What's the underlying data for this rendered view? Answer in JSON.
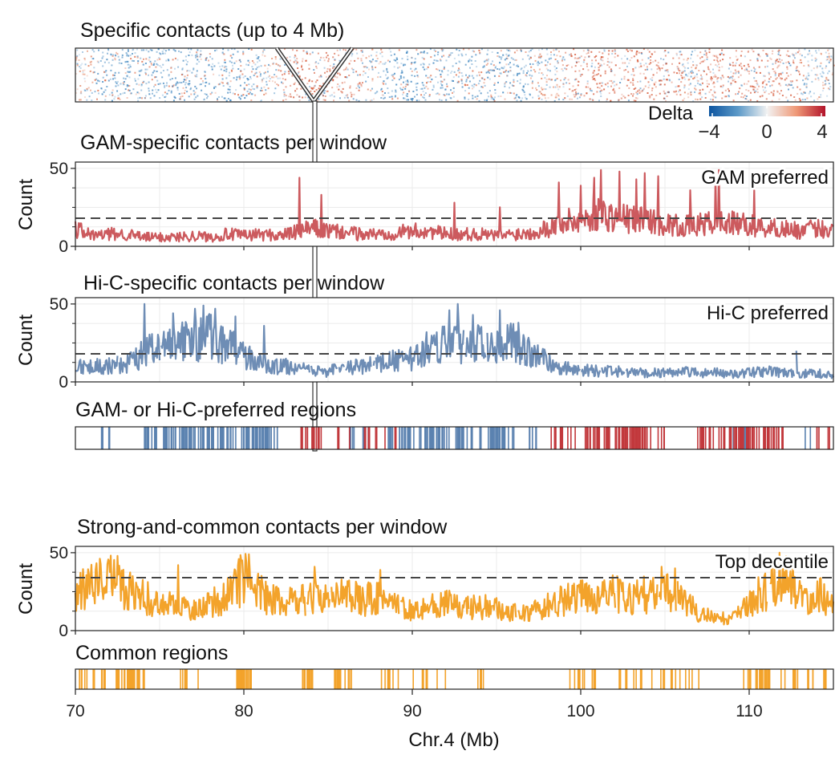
{
  "chart_data": {
    "type": "line",
    "xlabel": "Chr.4 (Mb)",
    "xlim": [
      70,
      115
    ],
    "xticks": [
      "70",
      "80",
      "90",
      "100",
      "110"
    ],
    "ylabel": "Count",
    "yticks": [
      "0",
      "50"
    ],
    "ylim": [
      0,
      52
    ],
    "heatmap": {
      "title": "Specific contacts (up to 4 Mb)",
      "legend_title": "Delta",
      "legend_ticks": [
        "−4",
        "0",
        "4"
      ],
      "range": [
        -4,
        4
      ],
      "red_regions_mb": [
        [
          82,
          87
        ],
        [
          99,
          106
        ],
        [
          107,
          113
        ]
      ],
      "blue_regions_mb": [
        [
          71,
          81
        ],
        [
          88,
          97
        ]
      ]
    },
    "panels": [
      {
        "key": "gam",
        "title": "GAM-specific contacts per window",
        "label": "GAM preferred",
        "color": "#cc5a5e",
        "threshold": 18,
        "series_points": [
          [
            70,
            12
          ],
          [
            71,
            7
          ],
          [
            72,
            8
          ],
          [
            73,
            8
          ],
          [
            74,
            6
          ],
          [
            75,
            6
          ],
          [
            76,
            6
          ],
          [
            77,
            7
          ],
          [
            78,
            6
          ],
          [
            79,
            8
          ],
          [
            80,
            7
          ],
          [
            81,
            8
          ],
          [
            82,
            7
          ],
          [
            83,
            9
          ],
          [
            84,
            12
          ],
          [
            85,
            10
          ],
          [
            86,
            9
          ],
          [
            87,
            8
          ],
          [
            88,
            8
          ],
          [
            89,
            9
          ],
          [
            90,
            10
          ],
          [
            91,
            10
          ],
          [
            92,
            8
          ],
          [
            93,
            8
          ],
          [
            94,
            8
          ],
          [
            95,
            7
          ],
          [
            96,
            8
          ],
          [
            97,
            9
          ],
          [
            98,
            12
          ],
          [
            99,
            16
          ],
          [
            100,
            17
          ],
          [
            101,
            22
          ],
          [
            102,
            19
          ],
          [
            103,
            18
          ],
          [
            104,
            17
          ],
          [
            105,
            15
          ],
          [
            106,
            13
          ],
          [
            107,
            14
          ],
          [
            108,
            16
          ],
          [
            109,
            15
          ],
          [
            110,
            14
          ],
          [
            111,
            12
          ],
          [
            112,
            12
          ],
          [
            113,
            10
          ],
          [
            114,
            12
          ],
          [
            115,
            11
          ]
        ],
        "peaks": [
          [
            83.3,
            44
          ],
          [
            84.6,
            33
          ],
          [
            92.5,
            28
          ],
          [
            95.2,
            25
          ],
          [
            98.7,
            41
          ],
          [
            100,
            39
          ],
          [
            100.8,
            44
          ],
          [
            101.2,
            49
          ],
          [
            102.3,
            48
          ],
          [
            103.3,
            43
          ],
          [
            103.8,
            47
          ],
          [
            104.6,
            45
          ],
          [
            106.5,
            36
          ],
          [
            108,
            45
          ],
          [
            108.2,
            49
          ],
          [
            110.3,
            36
          ]
        ]
      },
      {
        "key": "hic",
        "title": "Hi-C-specific contacts per window",
        "label": "Hi-C preferred",
        "color": "#6e8db5",
        "threshold": 18,
        "series_points": [
          [
            70,
            12
          ],
          [
            71,
            10
          ],
          [
            72,
            11
          ],
          [
            73,
            12
          ],
          [
            74,
            18
          ],
          [
            75,
            24
          ],
          [
            76,
            26
          ],
          [
            77,
            27
          ],
          [
            78,
            30
          ],
          [
            79,
            24
          ],
          [
            80,
            18
          ],
          [
            81,
            12
          ],
          [
            82,
            10
          ],
          [
            83,
            10
          ],
          [
            84,
            7
          ],
          [
            85,
            7
          ],
          [
            86,
            9
          ],
          [
            87,
            10
          ],
          [
            88,
            12
          ],
          [
            89,
            14
          ],
          [
            90,
            15
          ],
          [
            91,
            23
          ],
          [
            92,
            27
          ],
          [
            93,
            26
          ],
          [
            94,
            25
          ],
          [
            95,
            26
          ],
          [
            96,
            25
          ],
          [
            97,
            20
          ],
          [
            98,
            13
          ],
          [
            99,
            9
          ],
          [
            100,
            8
          ],
          [
            101,
            7
          ],
          [
            102,
            7
          ],
          [
            103,
            6
          ],
          [
            104,
            6
          ],
          [
            105,
            6
          ],
          [
            106,
            7
          ],
          [
            107,
            6
          ],
          [
            108,
            6
          ],
          [
            109,
            5
          ],
          [
            110,
            6
          ],
          [
            111,
            7
          ],
          [
            112,
            6
          ],
          [
            113,
            5
          ],
          [
            114,
            6
          ],
          [
            115,
            4
          ]
        ],
        "peaks": [
          [
            74.1,
            50
          ],
          [
            75.8,
            44
          ],
          [
            77.1,
            47
          ],
          [
            77.6,
            49
          ],
          [
            78.3,
            47
          ],
          [
            79.5,
            42
          ],
          [
            81.2,
            36
          ],
          [
            92.7,
            50
          ],
          [
            92.2,
            46
          ],
          [
            93.6,
            43
          ],
          [
            95.2,
            46
          ],
          [
            96.3,
            38
          ],
          [
            112.8,
            20
          ]
        ]
      },
      {
        "key": "common",
        "title": "Strong-and-common contacts per window",
        "label": "Top decentile",
        "color": "#f3a32b",
        "threshold": 34,
        "series_points": [
          [
            70,
            24
          ],
          [
            71,
            30
          ],
          [
            72,
            34
          ],
          [
            73,
            28
          ],
          [
            74,
            22
          ],
          [
            75,
            18
          ],
          [
            76,
            16
          ],
          [
            77,
            14
          ],
          [
            78,
            18
          ],
          [
            79,
            22
          ],
          [
            80,
            36
          ],
          [
            81,
            24
          ],
          [
            82,
            20
          ],
          [
            83,
            18
          ],
          [
            84,
            22
          ],
          [
            85,
            22
          ],
          [
            86,
            24
          ],
          [
            87,
            20
          ],
          [
            88,
            22
          ],
          [
            89,
            16
          ],
          [
            90,
            14
          ],
          [
            91,
            16
          ],
          [
            92,
            18
          ],
          [
            93,
            14
          ],
          [
            94,
            16
          ],
          [
            95,
            14
          ],
          [
            96,
            12
          ],
          [
            97,
            12
          ],
          [
            98,
            16
          ],
          [
            99,
            20
          ],
          [
            100,
            22
          ],
          [
            101,
            24
          ],
          [
            102,
            24
          ],
          [
            103,
            22
          ],
          [
            104,
            24
          ],
          [
            105,
            26
          ],
          [
            106,
            20
          ],
          [
            107,
            12
          ],
          [
            108,
            8
          ],
          [
            109,
            8
          ],
          [
            110,
            18
          ],
          [
            111,
            28
          ],
          [
            112,
            38
          ],
          [
            113,
            22
          ],
          [
            114,
            24
          ],
          [
            115,
            18
          ]
        ],
        "peaks": [
          [
            72.5,
            48
          ],
          [
            80.3,
            49
          ],
          [
            79.7,
            46
          ],
          [
            76.1,
            42
          ],
          [
            84.2,
            41
          ],
          [
            88.1,
            39
          ],
          [
            104.8,
            41
          ],
          [
            105.6,
            40
          ],
          [
            111.5,
            41
          ]
        ]
      }
    ],
    "tracks": [
      {
        "key": "preferred",
        "title": "GAM- or Hi-C-preferred regions",
        "blue_color": "#5b82b0",
        "red_color": "#c2383c",
        "blue_clusters_mb": [
          [
            71.5,
            1.0,
            4
          ],
          [
            74,
            7.5,
            80
          ],
          [
            80.5,
            1.5,
            10
          ],
          [
            86,
            1.5,
            6
          ],
          [
            88.5,
            7.5,
            70
          ],
          [
            96.5,
            1.0,
            5
          ],
          [
            108.5,
            1.5,
            5
          ],
          [
            113.2,
            0.6,
            2
          ]
        ],
        "red_clusters_mb": [
          [
            83.3,
            1.4,
            14
          ],
          [
            85.5,
            3.5,
            10
          ],
          [
            98.2,
            1.5,
            10
          ],
          [
            100.2,
            4.8,
            60
          ],
          [
            106.8,
            5.2,
            55
          ],
          [
            113.8,
            1.0,
            5
          ]
        ]
      },
      {
        "key": "common",
        "title": "Common regions",
        "color": "#f3a32b",
        "clusters_mb": [
          [
            70.2,
            1.6,
            14
          ],
          [
            72.1,
            2.0,
            22
          ],
          [
            76.2,
            1.2,
            5
          ],
          [
            79.5,
            1.0,
            16
          ],
          [
            83.3,
            0.8,
            10
          ],
          [
            85.2,
            1.2,
            10
          ],
          [
            88,
            1.2,
            8
          ],
          [
            90,
            2.0,
            8
          ],
          [
            93.5,
            1.0,
            4
          ],
          [
            99,
            2.0,
            12
          ],
          [
            102,
            4.5,
            14
          ],
          [
            106,
            1.0,
            4
          ],
          [
            109.5,
            0.5,
            3
          ],
          [
            110.2,
            1.0,
            20
          ],
          [
            111.5,
            2.5,
            10
          ],
          [
            114,
            0.5,
            2
          ]
        ]
      }
    ]
  }
}
